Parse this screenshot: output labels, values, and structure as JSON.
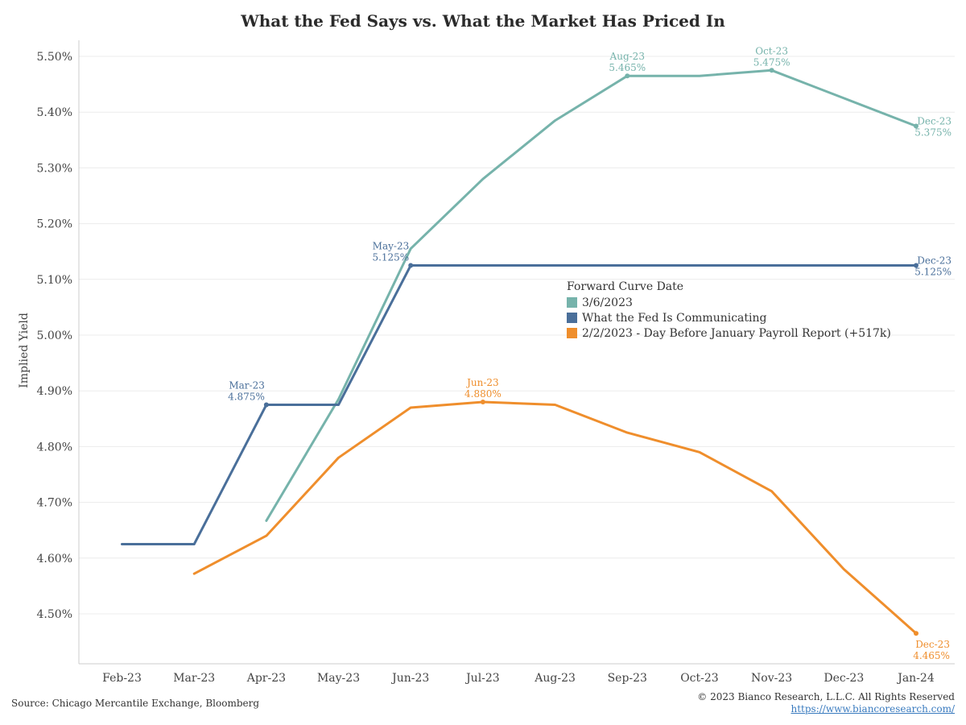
{
  "chart_data": {
    "type": "line",
    "title": "What the Fed Says vs. What the Market Has Priced In",
    "xlabel": "",
    "ylabel": "Implied Yield",
    "x": [
      "Feb-23",
      "Mar-23",
      "Apr-23",
      "May-23",
      "Jun-23",
      "Jul-23",
      "Aug-23",
      "Sep-23",
      "Oct-23",
      "Nov-23",
      "Dec-23",
      "Jan-24"
    ],
    "y_ticks": [
      "4.50%",
      "4.60%",
      "4.70%",
      "4.80%",
      "4.90%",
      "5.00%",
      "5.10%",
      "5.20%",
      "5.30%",
      "5.40%",
      "5.50%"
    ],
    "ylim": [
      4.41,
      5.58
    ],
    "grid": "horizontal",
    "legend_title": "Forward Curve Date",
    "legend_placement": "center-right",
    "series": [
      {
        "name": "3/6/2023",
        "color": "#76b3ab",
        "points": [
          [
            "Apr-23",
            4.667
          ],
          [
            "May-23",
            4.885
          ],
          [
            "Jun-23",
            5.155
          ],
          [
            "Jul-23",
            5.28
          ],
          [
            "Aug-23",
            5.385
          ],
          [
            "Sep-23",
            5.465
          ],
          [
            "Oct-23",
            5.465
          ],
          [
            "Nov-23",
            5.475
          ],
          [
            "Dec-23",
            5.425
          ],
          [
            "Jan-24",
            5.375
          ]
        ],
        "annotations": [
          {
            "x": "Sep-23",
            "y": 5.465,
            "label": "Aug-23",
            "value": "5.465%",
            "pos": "above"
          },
          {
            "x": "Nov-23",
            "y": 5.475,
            "label": "Oct-23",
            "value": "5.475%",
            "pos": "above"
          },
          {
            "x": "Jan-24",
            "y": 5.375,
            "label": "Dec-23",
            "value": "5.375%",
            "pos": "right"
          }
        ]
      },
      {
        "name": "What the Fed Is Communicating",
        "color": "#4a6f9a",
        "points": [
          [
            "Feb-23",
            4.625
          ],
          [
            "Mar-23",
            4.625
          ],
          [
            "Apr-23",
            4.875
          ],
          [
            "May-23",
            4.875
          ],
          [
            "Jun-23",
            5.125
          ],
          [
            "Jul-23",
            5.125
          ],
          [
            "Aug-23",
            5.125
          ],
          [
            "Sep-23",
            5.125
          ],
          [
            "Oct-23",
            5.125
          ],
          [
            "Nov-23",
            5.125
          ],
          [
            "Dec-23",
            5.125
          ],
          [
            "Jan-24",
            5.125
          ]
        ],
        "annotations": [
          {
            "x": "Apr-23",
            "y": 4.875,
            "label": "Mar-23",
            "value": "4.875%",
            "pos": "left-above"
          },
          {
            "x": "Jun-23",
            "y": 5.125,
            "label": "May-23",
            "value": "5.125%",
            "pos": "left-above"
          },
          {
            "x": "Jan-24",
            "y": 5.125,
            "label": "Dec-23",
            "value": "5.125%",
            "pos": "right"
          }
        ]
      },
      {
        "name": "2/2/2023 - Day Before January Payroll Report (+517k)",
        "color": "#ef8e2c",
        "points": [
          [
            "Mar-23",
            4.572
          ],
          [
            "Apr-23",
            4.64
          ],
          [
            "May-23",
            4.78
          ],
          [
            "Jun-23",
            4.87
          ],
          [
            "Jul-23",
            4.88
          ],
          [
            "Aug-23",
            4.875
          ],
          [
            "Sep-23",
            4.825
          ],
          [
            "Oct-23",
            4.79
          ],
          [
            "Nov-23",
            4.72
          ],
          [
            "Dec-23",
            4.58
          ],
          [
            "Jan-24",
            4.465
          ]
        ],
        "annotations": [
          {
            "x": "Jul-23",
            "y": 4.88,
            "label": "Jun-23",
            "value": "4.880%",
            "pos": "above"
          },
          {
            "x": "Jan-24",
            "y": 4.465,
            "label": "Dec-23",
            "value": "4.465%",
            "pos": "below"
          }
        ]
      }
    ]
  },
  "footer": {
    "source": "Source: Chicago Mercantile Exchange, Bloomberg",
    "copyright": "© 2023 Bianco Research, L.L.C. All Rights Reserved",
    "url": "https://www.biancoresearch.com/"
  }
}
